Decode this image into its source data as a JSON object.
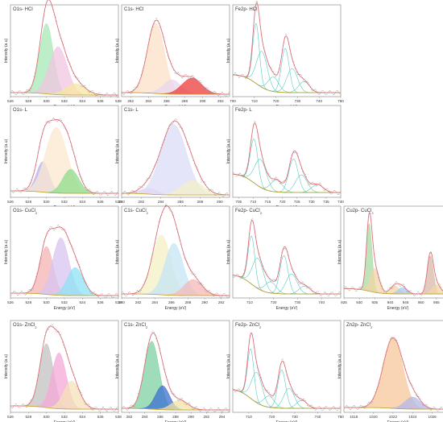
{
  "colors": {
    "frame": "#7f7f7f",
    "envelope": "#e0707a",
    "raw": "#8f8f8f",
    "background": "#c9a227",
    "green": "#4fbf86"
  },
  "chart_data": [
    {
      "id": "o1s-hcl",
      "title": "O1s- HCl",
      "type": "line",
      "xlabel": "Energy (eV)",
      "ylabel": "Intensity (a.u)",
      "xlim": [
        526,
        538
      ],
      "xticks": [
        "526",
        "528",
        "530",
        "532",
        "534",
        "536",
        "538"
      ],
      "ylim": [
        0,
        1.15
      ],
      "components": [
        {
          "center": 530.0,
          "height": 0.88,
          "width": 0.75,
          "color": "#a6e8b4"
        },
        {
          "center": 531.3,
          "height": 0.6,
          "width": 1.0,
          "color": "#f2c6e2"
        },
        {
          "center": 533.2,
          "height": 0.14,
          "width": 1.1,
          "color": "#f5e7a0"
        }
      ],
      "background": [
        0.02,
        0.05
      ]
    },
    {
      "id": "c1s-hcl",
      "title": "C1s- HCl",
      "type": "line",
      "xlabel": "Energy (eV)",
      "ylabel": "Intensity (a.u)",
      "xlim": [
        281,
        293
      ],
      "xticks": [
        "282",
        "284",
        "286",
        "288",
        "290",
        "292"
      ],
      "ylim": [
        0,
        1.15
      ],
      "components": [
        {
          "center": 284.8,
          "height": 0.88,
          "width": 0.95,
          "color": "#fbe0c6"
        },
        {
          "center": 286.6,
          "height": 0.18,
          "width": 1.0,
          "color": "#ead7f0"
        },
        {
          "center": 288.8,
          "height": 0.2,
          "width": 1.1,
          "color": "#ee3b3b"
        }
      ],
      "background": [
        0.03,
        0.05
      ]
    },
    {
      "id": "fe2p-hcl",
      "title": "Fe2p- HCl",
      "type": "line",
      "xlabel": "Energy (eV)",
      "ylabel": "Intensity (a.u)",
      "xlim": [
        700,
        750
      ],
      "xticks": [
        "700",
        "710",
        "720",
        "730",
        "740",
        "750"
      ],
      "ylim": [
        0,
        1.15
      ],
      "components": [
        {
          "center": 710.8,
          "height": 0.75,
          "width": 1.5,
          "color": "none"
        },
        {
          "center": 713.5,
          "height": 0.45,
          "width": 2.5,
          "color": "none"
        },
        {
          "center": 718.8,
          "height": 0.18,
          "width": 2.5,
          "color": "none"
        },
        {
          "center": 724.3,
          "height": 0.55,
          "width": 1.8,
          "color": "none"
        },
        {
          "center": 727.5,
          "height": 0.3,
          "width": 2.5,
          "color": "none"
        },
        {
          "center": 733.0,
          "height": 0.14,
          "width": 2.5,
          "color": "none"
        }
      ],
      "background": [
        0.05,
        0.28
      ]
    },
    {
      "id": "o1s-l",
      "title": "O1s- L",
      "type": "line",
      "xlabel": "Energy (eV)",
      "ylabel": "Intensity (a.u)",
      "xlim": [
        526,
        538
      ],
      "xticks": [
        "526",
        "528",
        "530",
        "532",
        "534",
        "536",
        "538"
      ],
      "ylim": [
        0,
        1.15
      ],
      "components": [
        {
          "center": 529.6,
          "height": 0.38,
          "width": 0.7,
          "color": "#b7b0ec"
        },
        {
          "center": 531.1,
          "height": 0.82,
          "width": 1.2,
          "color": "#fbe8cf"
        },
        {
          "center": 532.7,
          "height": 0.3,
          "width": 0.9,
          "color": "#8fdc8a"
        }
      ],
      "background": [
        0.05,
        0.08
      ]
    },
    {
      "id": "c1s-l",
      "title": "C1s- L",
      "type": "line",
      "xlabel": "Energy (eV)",
      "ylabel": "Intensity (a.u)",
      "xlim": [
        280,
        291
      ],
      "xticks": [
        "280",
        "282",
        "284",
        "286",
        "288",
        "290"
      ],
      "ylim": [
        0,
        1.15
      ],
      "components": [
        {
          "center": 282.8,
          "height": 0.07,
          "width": 0.9,
          "color": "#f3c4ec"
        },
        {
          "center": 285.3,
          "height": 0.88,
          "width": 1.3,
          "color": "#dcdcf8"
        },
        {
          "center": 287.2,
          "height": 0.18,
          "width": 1.1,
          "color": "#f3efc8"
        }
      ],
      "background": [
        0.03,
        0.05
      ]
    },
    {
      "id": "fe2p-l",
      "title": "Fe2p- L",
      "type": "line",
      "xlabel": "Energy (eV)",
      "ylabel": "Intensity (a.u)",
      "xlim": [
        703,
        740
      ],
      "xticks": [
        "705",
        "710",
        "715",
        "720",
        "725",
        "730",
        "735",
        "740"
      ],
      "ylim": [
        0,
        1.15
      ],
      "components": [
        {
          "center": 710.3,
          "height": 0.55,
          "width": 1.3,
          "color": "none"
        },
        {
          "center": 712.5,
          "height": 0.35,
          "width": 2.0,
          "color": "none"
        },
        {
          "center": 718.0,
          "height": 0.15,
          "width": 2.0,
          "color": "none"
        },
        {
          "center": 723.8,
          "height": 0.42,
          "width": 1.6,
          "color": "none"
        },
        {
          "center": 726.5,
          "height": 0.22,
          "width": 2.0,
          "color": "none"
        },
        {
          "center": 732.0,
          "height": 0.1,
          "width": 2.0,
          "color": "none"
        }
      ],
      "background": [
        0.06,
        0.3
      ]
    },
    {
      "id": "o1s-cucl2",
      "title": "O1s- CuCl",
      "subscript": "2",
      "type": "line",
      "xlabel": "Energy (eV)",
      "ylabel": "Intensity (a.u)",
      "xlim": [
        526,
        538
      ],
      "xticks": [
        "526",
        "528",
        "530",
        "532",
        "534",
        "536",
        "538"
      ],
      "ylim": [
        0,
        1.15
      ],
      "components": [
        {
          "center": 530.0,
          "height": 0.6,
          "width": 0.75,
          "color": "#f4b3b3"
        },
        {
          "center": 531.6,
          "height": 0.72,
          "width": 0.9,
          "color": "#d8c4f2"
        },
        {
          "center": 533.2,
          "height": 0.35,
          "width": 0.9,
          "color": "#8ee2f4"
        }
      ],
      "background": [
        0.03,
        0.06
      ]
    },
    {
      "id": "c1s-cucl2",
      "title": "C1s- CuCl",
      "subscript": "2",
      "type": "line",
      "xlabel": "Energy (eV)",
      "ylabel": "Intensity (a.u)",
      "xlim": [
        280,
        293
      ],
      "xticks": [
        "280",
        "282",
        "284",
        "286",
        "288",
        "290",
        "292"
      ],
      "ylim": [
        0,
        1.15
      ],
      "components": [
        {
          "center": 284.8,
          "height": 0.75,
          "width": 1.1,
          "color": "#f4f0c4"
        },
        {
          "center": 286.3,
          "height": 0.65,
          "width": 1.1,
          "color": "#c4e6f4"
        },
        {
          "center": 288.6,
          "height": 0.2,
          "width": 1.1,
          "color": "#f4b8b8"
        }
      ],
      "background": [
        0.03,
        0.05
      ]
    },
    {
      "id": "fe2p-cucl2",
      "title": "Fe2p- CuCl",
      "subscript": "2",
      "type": "line",
      "xlabel": "Energy (eV)",
      "ylabel": "Intensity (a.u)",
      "xlim": [
        703,
        748
      ],
      "xticks": [
        "710",
        "720",
        "730",
        "740"
      ],
      "ylim": [
        0,
        1.15
      ],
      "components": [
        {
          "center": 710.8,
          "height": 0.6,
          "width": 1.4,
          "color": "none"
        },
        {
          "center": 713.5,
          "height": 0.38,
          "width": 2.3,
          "color": "none"
        },
        {
          "center": 718.8,
          "height": 0.14,
          "width": 2.3,
          "color": "none"
        },
        {
          "center": 724.3,
          "height": 0.48,
          "width": 1.7,
          "color": "none"
        },
        {
          "center": 727.5,
          "height": 0.25,
          "width": 2.3,
          "color": "none"
        },
        {
          "center": 733.0,
          "height": 0.1,
          "width": 2.3,
          "color": "none"
        }
      ],
      "background": [
        0.05,
        0.3
      ]
    },
    {
      "id": "cu2p-cucl2",
      "title": "Cu2p- CuCl",
      "subscript": "2",
      "type": "line",
      "xlabel": "Energy (eV)",
      "ylabel": "Intensity (a.u)",
      "xlim": [
        925,
        960
      ],
      "xticks": [
        "925",
        "930",
        "935",
        "940",
        "945",
        "950",
        "955",
        "960"
      ],
      "ylim": [
        0,
        1.15
      ],
      "components": [
        {
          "center": 933.2,
          "height": 0.85,
          "width": 0.9,
          "color": "#a9d9a3"
        },
        {
          "center": 935.0,
          "height": 0.3,
          "width": 1.4,
          "color": "#f2d6a6"
        },
        {
          "center": 941.5,
          "height": 0.1,
          "width": 1.5,
          "color": "#f2d6a6"
        },
        {
          "center": 944.0,
          "height": 0.08,
          "width": 1.5,
          "color": "#a8c8f0"
        },
        {
          "center": 953.0,
          "height": 0.48,
          "width": 1.0,
          "color": "#d8b8a8"
        },
        {
          "center": 955.0,
          "height": 0.12,
          "width": 1.4,
          "color": "#f2d6a6"
        }
      ],
      "background": [
        0.05,
        0.12
      ]
    },
    {
      "id": "o1s-zncl2",
      "title": "O1s- ZnCl",
      "subscript": "2",
      "type": "line",
      "xlabel": "Energy (eV)",
      "ylabel": "Intensity (a.u)",
      "xlim": [
        526,
        538
      ],
      "xticks": [
        "526",
        "528",
        "530",
        "532",
        "534",
        "536",
        "538"
      ],
      "ylim": [
        0,
        1.15
      ],
      "components": [
        {
          "center": 530.0,
          "height": 0.8,
          "width": 0.75,
          "color": "#c2c2c2"
        },
        {
          "center": 531.4,
          "height": 0.7,
          "width": 0.8,
          "color": "#f5a8d8"
        },
        {
          "center": 532.8,
          "height": 0.35,
          "width": 0.9,
          "color": "#f4e2b8"
        }
      ],
      "background": [
        0.04,
        0.08
      ]
    },
    {
      "id": "c1s-zncl2",
      "title": "C1s- ZnCl",
      "subscript": "2",
      "type": "line",
      "xlabel": "Energy (eV)",
      "ylabel": "Intensity (a.u)",
      "xlim": [
        281,
        295
      ],
      "xticks": [
        "282",
        "284",
        "286",
        "288",
        "290",
        "292",
        "294"
      ],
      "ylim": [
        0,
        1.15
      ],
      "components": [
        {
          "center": 284.9,
          "height": 0.85,
          "width": 0.95,
          "color": "#7fd2a3"
        },
        {
          "center": 286.3,
          "height": 0.3,
          "width": 0.9,
          "color": "#3b6fd0"
        },
        {
          "center": 288.5,
          "height": 0.12,
          "width": 1.1,
          "color": "#f2e3a6"
        }
      ],
      "background": [
        0.03,
        0.05
      ]
    },
    {
      "id": "fe2p-zncl2",
      "title": "Fe2p- ZnCl",
      "subscript": "2",
      "type": "line",
      "xlabel": "Energy (eV)",
      "ylabel": "Intensity (a.u)",
      "xlim": [
        703,
        750
      ],
      "xticks": [
        "710",
        "720",
        "730",
        "740",
        "750"
      ],
      "ylim": [
        0,
        1.15
      ],
      "components": [
        {
          "center": 710.8,
          "height": 0.62,
          "width": 1.4,
          "color": "none"
        },
        {
          "center": 713.5,
          "height": 0.38,
          "width": 2.3,
          "color": "none"
        },
        {
          "center": 718.8,
          "height": 0.14,
          "width": 2.3,
          "color": "none"
        },
        {
          "center": 724.3,
          "height": 0.48,
          "width": 1.7,
          "color": "none"
        },
        {
          "center": 727.5,
          "height": 0.25,
          "width": 2.3,
          "color": "none"
        },
        {
          "center": 733.0,
          "height": 0.1,
          "width": 2.3,
          "color": "none"
        }
      ],
      "background": [
        0.05,
        0.3
      ]
    },
    {
      "id": "zn2p-zncl2",
      "title": "Zn2p- ZnCl",
      "subscript": "2",
      "type": "line",
      "xlabel": "Energy (eV)",
      "ylabel": "Intensity (a.u)",
      "xlim": [
        1017,
        1028
      ],
      "xticks": [
        "1018",
        "1020",
        "1022",
        "1024",
        "1026",
        "1028"
      ],
      "ylim": [
        0,
        1.15
      ],
      "components": [
        {
          "center": 1022.0,
          "height": 0.88,
          "width": 1.0,
          "color": "#f7c79a"
        },
        {
          "center": 1024.0,
          "height": 0.15,
          "width": 0.8,
          "color": "#b2b8ea"
        }
      ],
      "background": [
        0.04,
        0.06
      ]
    }
  ]
}
